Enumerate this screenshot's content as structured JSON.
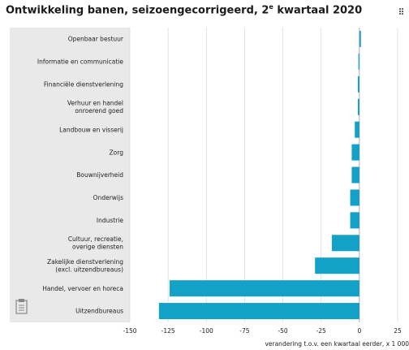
{
  "header": {
    "title_main": "Ontwikkeling banen, seizoengecorrigeerd, 2",
    "title_sup": "e",
    "title_end": " kwartaal 2020"
  },
  "icons": {
    "export": "export-icon",
    "notes": "clipboard-icon"
  },
  "colors": {
    "bar": "#13a1c8",
    "panel": "#e9e9e9",
    "grid": "#ffffff",
    "text": "#222222"
  },
  "chart_data": {
    "type": "bar",
    "orientation": "horizontal",
    "title": "Ontwikkeling banen, seizoengecorrigeerd, 2e kwartaal 2020",
    "xlabel": "verandering t.o.v. een kwartaal eerder, x 1 000",
    "xlim": [
      -150,
      25
    ],
    "xticks": [
      -150,
      -125,
      -100,
      -75,
      -50,
      -25,
      0,
      25
    ],
    "grid": true,
    "categories": [
      [
        "Openbaar bestuur"
      ],
      [
        "Informatie en communicatie"
      ],
      [
        "Financiële dienstverlening"
      ],
      [
        "Verhuur en handel",
        "onroerend goed"
      ],
      [
        "Landbouw en visserij"
      ],
      [
        "Zorg"
      ],
      [
        "Bouwnijverheid"
      ],
      [
        "Onderwijs"
      ],
      [
        "Industrie"
      ],
      [
        "Cultuur, recreatie,",
        "overige diensten"
      ],
      [
        "Zakelijke dienstverlening",
        "(excl. uitzendbureaus)"
      ],
      [
        "Handel, vervoer en horeca"
      ],
      [
        "Uitzendbureaus"
      ]
    ],
    "values": [
      1,
      0,
      -1,
      -1,
      -3,
      -5,
      -5,
      -6,
      -6,
      -18,
      -29,
      -124,
      -131
    ]
  }
}
